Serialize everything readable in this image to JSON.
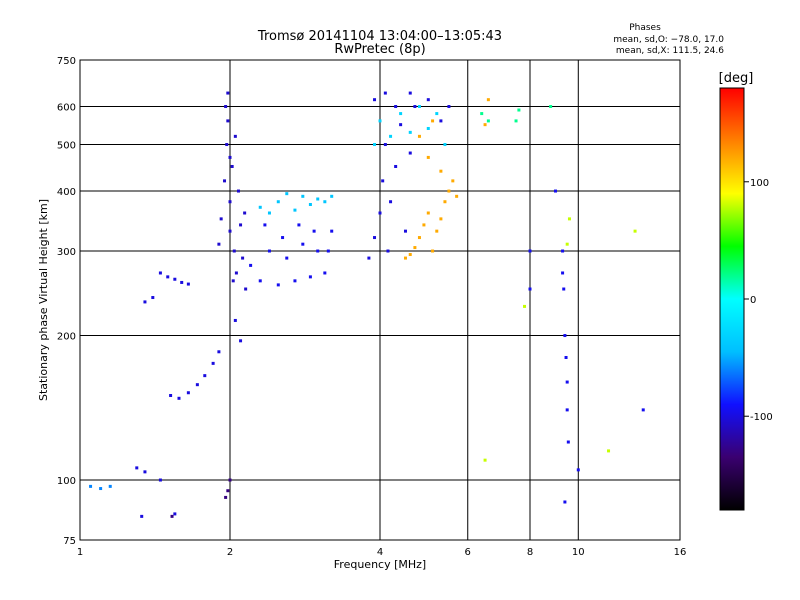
{
  "chart_data": {
    "type": "scatter",
    "title": "Tromsø 20141104 13:04:00–13:05:43",
    "subtitle": "RwPretec (8p)",
    "xlabel": "Frequency [MHz]",
    "ylabel": "Stationary phase Virtual Height [km]",
    "xscale": "log2",
    "yscale": "log",
    "xlim": [
      1,
      16
    ],
    "ylim": [
      75,
      750
    ],
    "x_ticks": [
      1,
      2,
      4,
      6,
      8,
      10,
      16
    ],
    "y_ticks": [
      75,
      100,
      200,
      300,
      400,
      500,
      600,
      750
    ],
    "x_grid": [
      2,
      4,
      6,
      8,
      10
    ],
    "y_grid": [
      100,
      200,
      300,
      400,
      500,
      600
    ],
    "grid": true,
    "phase_info": {
      "heading": "Phases",
      "line_o": "mean, sd,O: −78.0, 17.0",
      "line_x": "mean, sd,X: 111.5, 24.6"
    },
    "colorbar": {
      "label": "[deg]",
      "ticks": [
        100,
        0,
        -100
      ],
      "range": [
        -180,
        180
      ],
      "colors": [
        "#000000",
        "#3a0070",
        "#1010ff",
        "#00bfff",
        "#00ffff",
        "#00ff00",
        "#ffff00",
        "#ff8000",
        "#ff0000"
      ]
    },
    "series": [
      {
        "phase": -105,
        "points": [
          [
            1.9,
            310
          ],
          [
            1.92,
            350
          ],
          [
            1.95,
            420
          ],
          [
            1.97,
            500
          ],
          [
            1.98,
            560
          ],
          [
            2.0,
            380
          ],
          [
            2.0,
            330
          ],
          [
            2.02,
            450
          ],
          [
            2.04,
            300
          ],
          [
            2.05,
            520
          ],
          [
            2.06,
            270
          ],
          [
            2.08,
            400
          ],
          [
            2.1,
            340
          ],
          [
            2.12,
            290
          ],
          [
            2.14,
            360
          ],
          [
            1.96,
            600
          ],
          [
            1.98,
            640
          ],
          [
            2.0,
            470
          ],
          [
            2.03,
            260
          ],
          [
            2.15,
            250
          ]
        ]
      },
      {
        "phase": -95,
        "points": [
          [
            2.2,
            280
          ],
          [
            2.3,
            260
          ],
          [
            2.4,
            300
          ],
          [
            2.5,
            255
          ],
          [
            2.6,
            290
          ],
          [
            2.7,
            260
          ],
          [
            2.8,
            310
          ],
          [
            2.9,
            265
          ],
          [
            3.0,
            300
          ],
          [
            3.1,
            270
          ],
          [
            3.2,
            330
          ],
          [
            2.35,
            340
          ],
          [
            2.55,
            320
          ],
          [
            2.75,
            340
          ],
          [
            2.95,
            330
          ],
          [
            3.15,
            300
          ]
        ]
      },
      {
        "phase": -40,
        "points": [
          [
            2.3,
            370
          ],
          [
            2.5,
            380
          ],
          [
            2.7,
            365
          ],
          [
            2.9,
            375
          ],
          [
            3.1,
            380
          ],
          [
            2.6,
            395
          ],
          [
            2.8,
            390
          ],
          [
            3.0,
            385
          ],
          [
            2.4,
            360
          ],
          [
            3.2,
            390
          ]
        ]
      },
      {
        "phase": -100,
        "points": [
          [
            1.45,
            270
          ],
          [
            1.5,
            265
          ],
          [
            1.55,
            262
          ],
          [
            1.6,
            258
          ],
          [
            1.65,
            256
          ],
          [
            1.4,
            240
          ],
          [
            1.35,
            235
          ],
          [
            1.52,
            150
          ],
          [
            1.58,
            148
          ],
          [
            1.65,
            152
          ],
          [
            1.72,
            158
          ],
          [
            1.78,
            165
          ],
          [
            1.85,
            175
          ],
          [
            1.9,
            185
          ],
          [
            2.05,
            215
          ],
          [
            2.1,
            195
          ],
          [
            1.3,
            106
          ],
          [
            1.35,
            104
          ],
          [
            1.45,
            100
          ],
          [
            1.55,
            85
          ],
          [
            1.33,
            84
          ]
        ]
      },
      {
        "phase": -60,
        "points": [
          [
            1.05,
            97
          ],
          [
            1.1,
            96
          ],
          [
            1.15,
            97
          ]
        ]
      },
      {
        "phase": -100,
        "points": [
          [
            3.8,
            290
          ],
          [
            3.9,
            320
          ],
          [
            4.0,
            360
          ],
          [
            4.05,
            420
          ],
          [
            4.1,
            500
          ],
          [
            4.15,
            300
          ],
          [
            4.2,
            380
          ],
          [
            4.3,
            450
          ],
          [
            4.4,
            550
          ],
          [
            4.5,
            330
          ],
          [
            4.6,
            480
          ],
          [
            4.7,
            600
          ],
          [
            3.9,
            620
          ],
          [
            4.1,
            640
          ],
          [
            4.3,
            600
          ],
          [
            4.6,
            640
          ],
          [
            5.0,
            620
          ],
          [
            5.3,
            560
          ],
          [
            5.5,
            600
          ]
        ]
      },
      {
        "phase": -30,
        "points": [
          [
            4.2,
            520
          ],
          [
            4.4,
            580
          ],
          [
            4.6,
            530
          ],
          [
            4.8,
            600
          ],
          [
            5.0,
            540
          ],
          [
            5.2,
            580
          ],
          [
            5.4,
            500
          ],
          [
            4.0,
            560
          ],
          [
            3.9,
            500
          ]
        ]
      },
      {
        "phase": 120,
        "points": [
          [
            4.5,
            290
          ],
          [
            4.6,
            295
          ],
          [
            4.7,
            305
          ],
          [
            4.8,
            320
          ],
          [
            4.9,
            340
          ],
          [
            5.0,
            360
          ],
          [
            5.1,
            300
          ],
          [
            5.2,
            330
          ],
          [
            5.3,
            350
          ],
          [
            5.4,
            380
          ],
          [
            5.5,
            400
          ],
          [
            5.6,
            420
          ],
          [
            5.7,
            390
          ],
          [
            5.3,
            440
          ],
          [
            5.0,
            470
          ],
          [
            4.8,
            520
          ],
          [
            5.1,
            560
          ],
          [
            6.5,
            550
          ],
          [
            6.6,
            620
          ]
        ]
      },
      {
        "phase": 20,
        "points": [
          [
            6.4,
            580
          ],
          [
            6.6,
            560
          ],
          [
            7.5,
            560
          ],
          [
            7.6,
            590
          ],
          [
            8.8,
            600
          ]
        ]
      },
      {
        "phase": -95,
        "points": [
          [
            9.3,
            300
          ],
          [
            9.3,
            270
          ],
          [
            9.35,
            250
          ],
          [
            9.4,
            200
          ],
          [
            9.45,
            180
          ],
          [
            9.5,
            160
          ],
          [
            9.5,
            140
          ],
          [
            9.55,
            120
          ],
          [
            9.4,
            90
          ],
          [
            10.0,
            105
          ],
          [
            13.5,
            140
          ],
          [
            8.0,
            250
          ],
          [
            8.0,
            300
          ],
          [
            9.0,
            400
          ]
        ]
      },
      {
        "phase": 80,
        "points": [
          [
            7.8,
            230
          ],
          [
            9.5,
            310
          ],
          [
            9.6,
            350
          ],
          [
            13.0,
            330
          ],
          [
            6.5,
            110
          ],
          [
            11.5,
            115
          ]
        ]
      },
      {
        "phase": -130,
        "points": [
          [
            1.98,
            95
          ],
          [
            1.96,
            92
          ],
          [
            2.0,
            100
          ],
          [
            1.53,
            84
          ]
        ]
      }
    ]
  }
}
